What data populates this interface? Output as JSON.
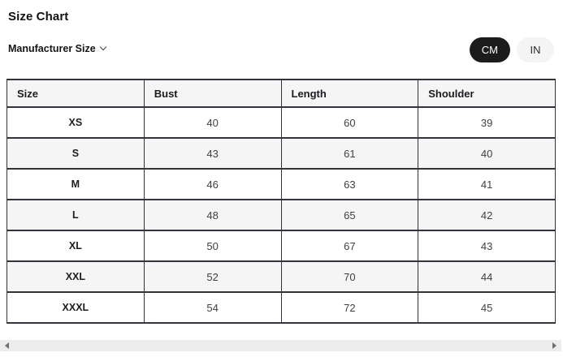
{
  "title": "Size Chart",
  "size_selector": {
    "label": "Manufacturer Size",
    "icon": "chevron-down-icon"
  },
  "unit_toggle": {
    "options": [
      {
        "label": "CM",
        "selected": true
      },
      {
        "label": "IN",
        "selected": false
      }
    ]
  },
  "size_chart": {
    "unit": "CM",
    "headers": [
      "Size",
      "Bust",
      "Length",
      "Shoulder"
    ],
    "rows": [
      {
        "size": "XS",
        "values": [
          "40",
          "60",
          "39"
        ]
      },
      {
        "size": "S",
        "values": [
          "43",
          "61",
          "40"
        ]
      },
      {
        "size": "M",
        "values": [
          "46",
          "63",
          "41"
        ]
      },
      {
        "size": "L",
        "values": [
          "48",
          "65",
          "42"
        ]
      },
      {
        "size": "XL",
        "values": [
          "50",
          "67",
          "43"
        ]
      },
      {
        "size": "XXL",
        "values": [
          "52",
          "70",
          "44"
        ]
      },
      {
        "size": "XXXL",
        "values": [
          "54",
          "72",
          "45"
        ]
      }
    ]
  },
  "scrollbar": {
    "left_icon": "triangle-left-icon",
    "right_icon": "triangle-right-icon"
  },
  "colors": {
    "selected_pill_bg": "#1c1c1c",
    "selected_pill_text": "#ffffff",
    "unselected_pill_bg": "#f4f4f5",
    "table_border": "#33333b",
    "header_and_stripe_bg": "#f5f5f6",
    "scrollbar_track": "#ececec"
  }
}
